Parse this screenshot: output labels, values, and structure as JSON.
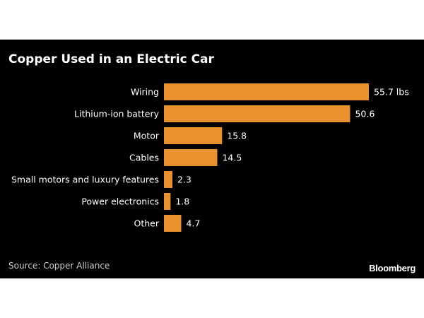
{
  "chart_data": {
    "type": "bar",
    "orientation": "horizontal",
    "title": "Copper Used in an Electric Car",
    "categories": [
      "Wiring",
      "Lithium-ion battery",
      "Motor",
      "Cables",
      "Small motors and luxury features",
      "Power electronics",
      "Other"
    ],
    "values": [
      55.7,
      50.6,
      15.8,
      14.5,
      2.3,
      1.8,
      4.7
    ],
    "value_labels": [
      "55.7 lbs",
      "50.6",
      "15.8",
      "14.5",
      "2.3",
      "1.8",
      "4.7"
    ],
    "xlim": [
      0,
      60
    ],
    "grid": false,
    "legend": "none"
  },
  "footer": {
    "source": "Source: Copper Alliance",
    "logo": "Bloomberg"
  },
  "colors": {
    "background": "#000000",
    "bar": "#e8912d",
    "text": "#ffffff",
    "muted": "#cfcfcf"
  }
}
